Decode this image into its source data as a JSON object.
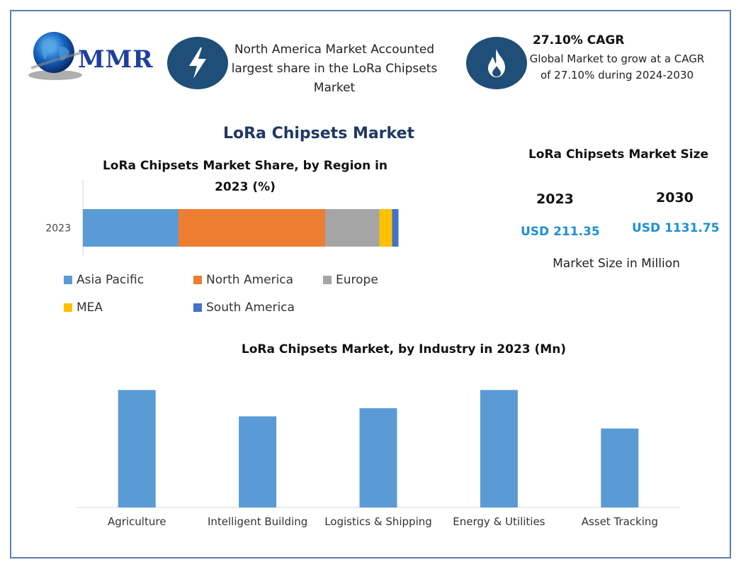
{
  "logo": {
    "text": "MMR"
  },
  "info_left": {
    "icon": "lightning-bolt-icon",
    "text": "North America Market Accounted largest share in the LoRa Chipsets Market"
  },
  "info_right": {
    "icon": "flame-icon",
    "title": "27.10% CAGR",
    "text": "Global Market to grow at a CAGR of 27.10% during 2024-2030"
  },
  "main_title": "LoRa Chipsets Market",
  "market_size": {
    "title": "LoRa Chipsets Market Size",
    "items": [
      {
        "year": "2023",
        "value": "USD 211.35"
      },
      {
        "year": "2030",
        "value": "USD 1131.75"
      }
    ],
    "unit_text": "Market Size in Million"
  },
  "colors": {
    "accent_dark": "#1f4e79",
    "value_blue": "#1f8fd6",
    "bar_blue": "#5b9bd5"
  },
  "chart_data": [
    {
      "type": "bar",
      "orientation": "horizontal",
      "stacked": true,
      "title": "LoRa Chipsets Market Share, by Region in 2023 (%)",
      "categories": [
        "2023"
      ],
      "series": [
        {
          "name": "Asia Pacific",
          "values": [
            30
          ],
          "color": "#5b9bd5"
        },
        {
          "name": "North America",
          "values": [
            46
          ],
          "color": "#ed7d31"
        },
        {
          "name": "Europe",
          "values": [
            17
          ],
          "color": "#a5a5a5"
        },
        {
          "name": "MEA",
          "values": [
            4
          ],
          "color": "#ffc000"
        },
        {
          "name": "South America",
          "values": [
            2
          ],
          "color": "#4472c4"
        }
      ],
      "xlim": [
        0,
        100
      ],
      "grid": false,
      "legend": "bottom"
    },
    {
      "type": "bar",
      "title": "LoRa Chipsets Market, by Industry in 2023 (Mn)",
      "categories": [
        "Agriculture",
        "Intelligent Building",
        "Logistics & Shipping",
        "Energy & Utilities",
        "Asset Tracking"
      ],
      "values": [
        58,
        45,
        49,
        58,
        39
      ],
      "ylim": [
        0,
        70
      ],
      "color": "#5b9bd5",
      "grid": false,
      "legend": "none"
    }
  ]
}
